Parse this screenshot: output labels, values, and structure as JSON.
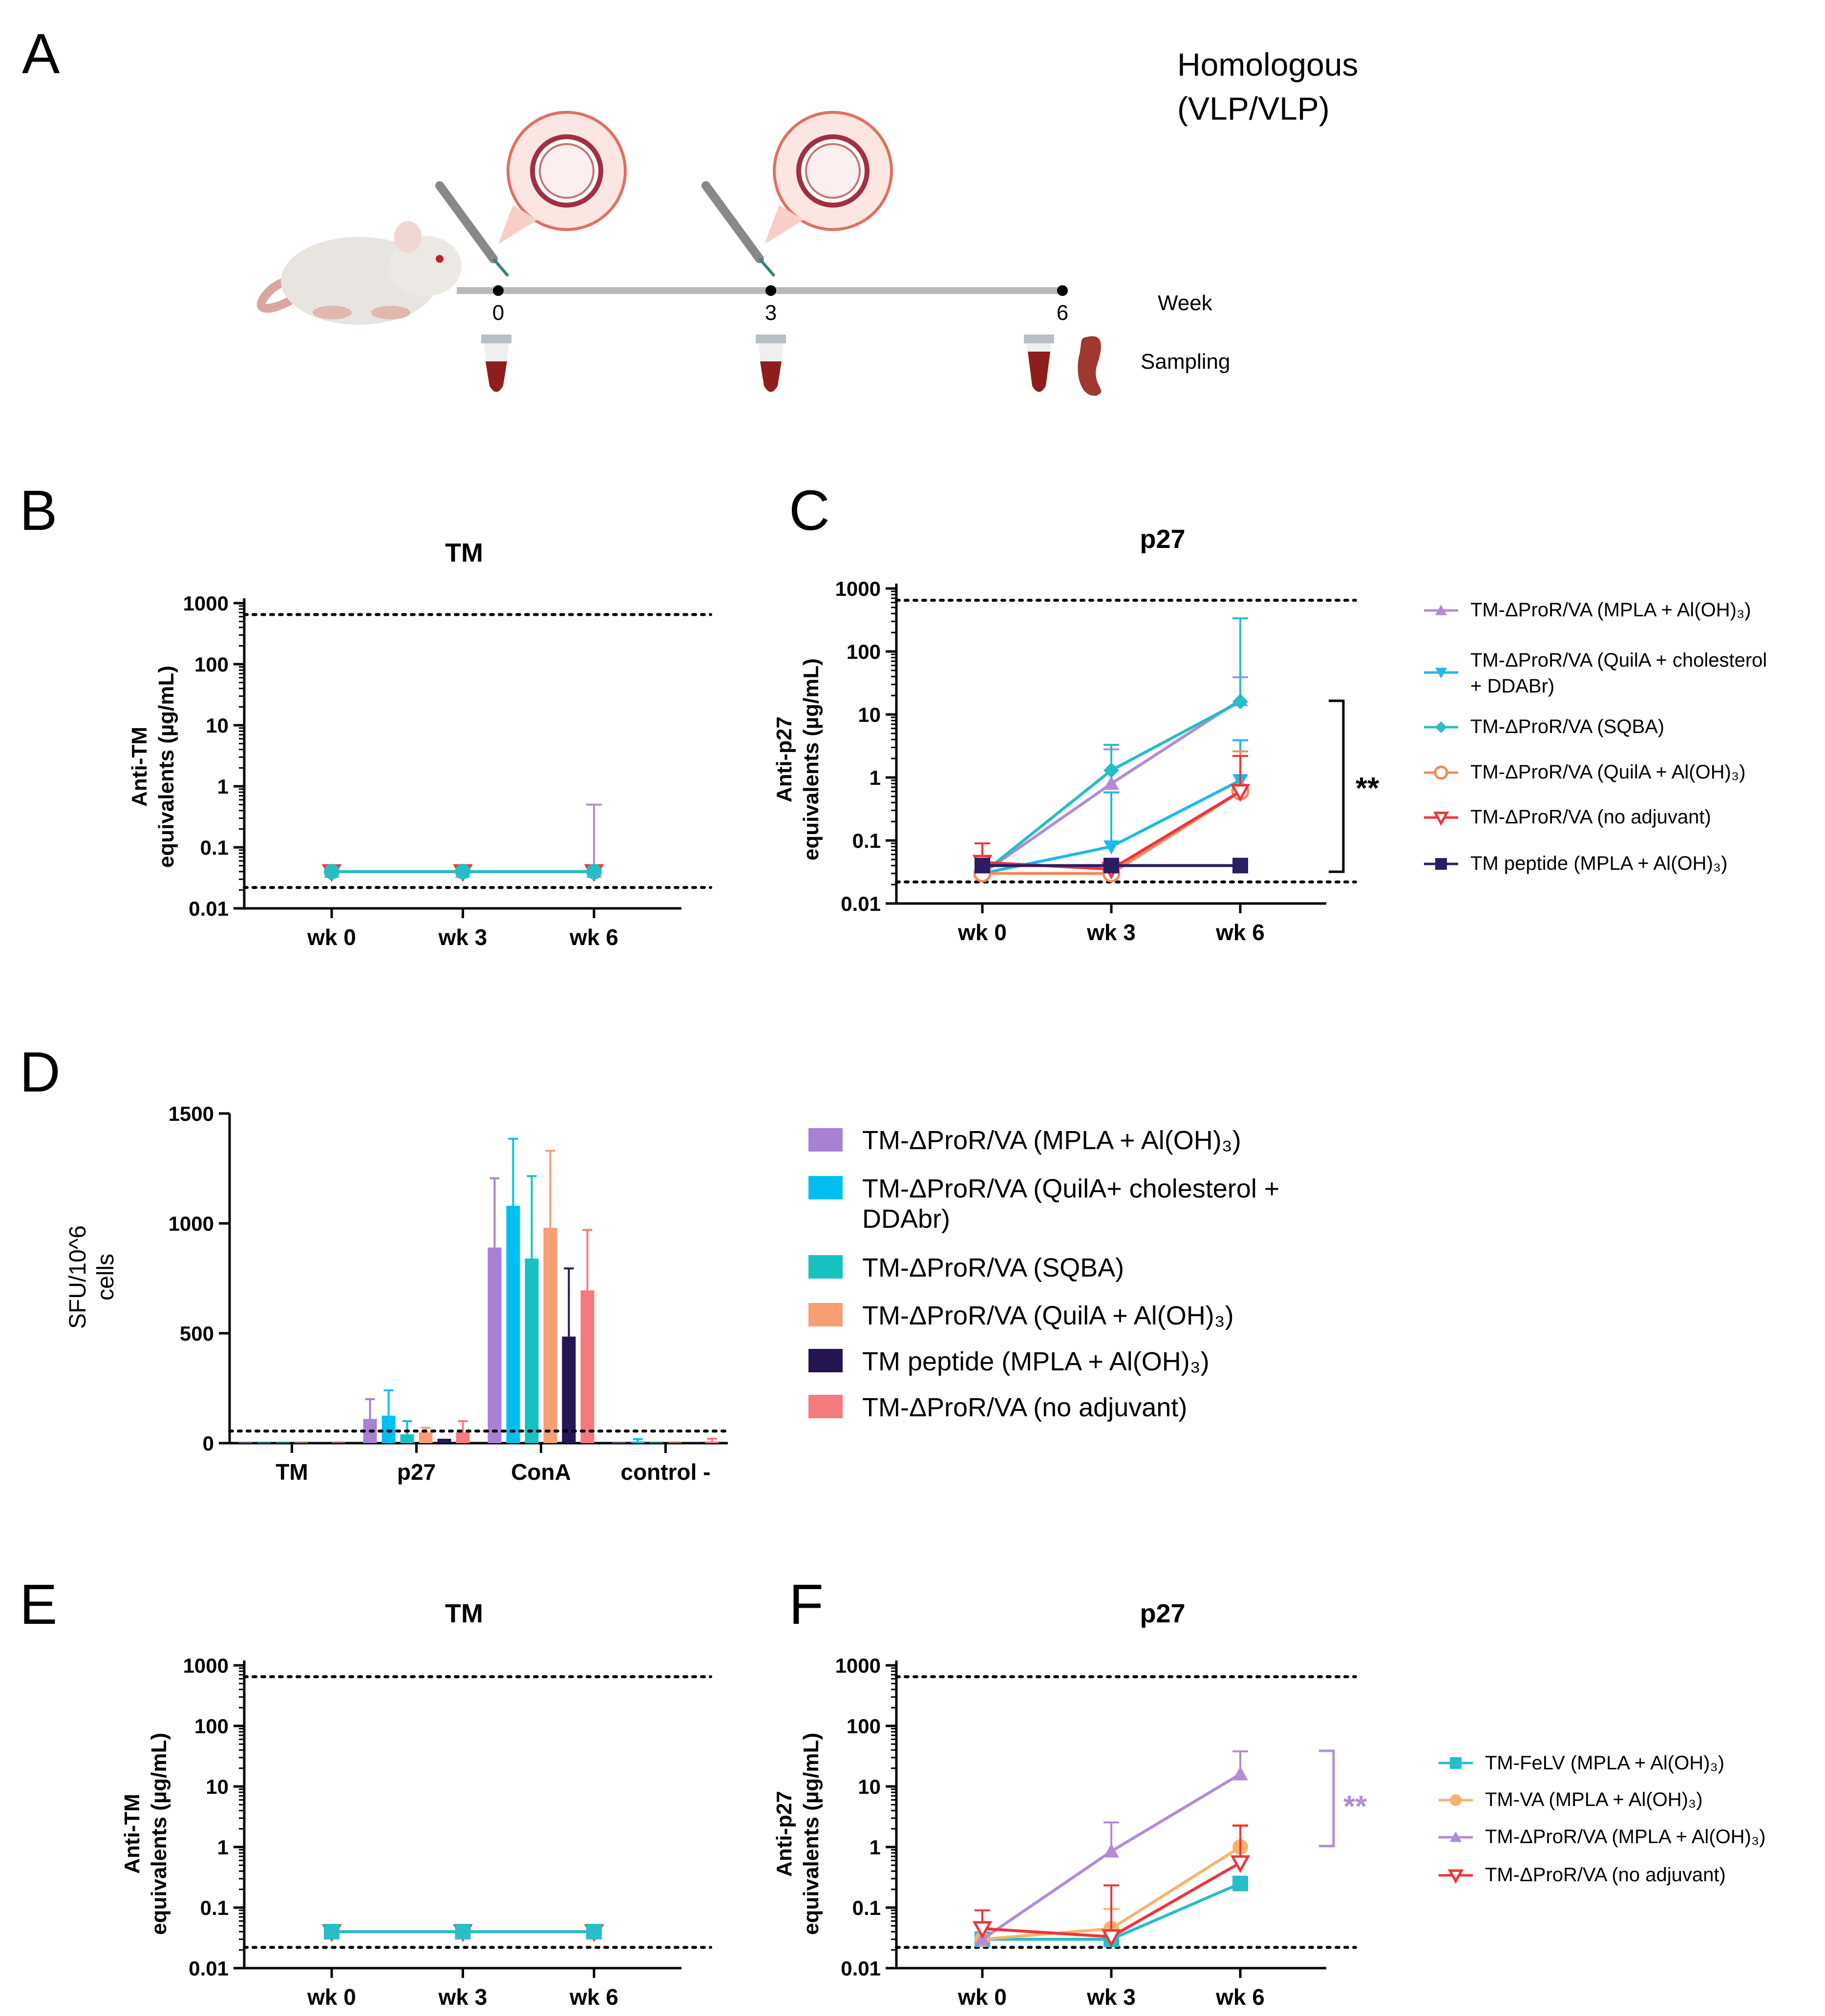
{
  "panel_labels": {
    "A": "A",
    "B": "B",
    "C": "C",
    "D": "D",
    "E": "E",
    "F": "F"
  },
  "panel_a": {
    "title_line1": "Homologous",
    "title_line2": "(VLP/VLP)",
    "weeks": [
      "0",
      "3",
      "6"
    ],
    "week_label": "Week",
    "sampling_label": "Sampling"
  },
  "colors": {
    "mpla": "#B38BD8",
    "quila_chol": "#1FB8E8",
    "sqba": "#25BEC4",
    "quila_aloh": "#F48A5A",
    "no_adj": "#F0343A",
    "tm_peptide": "#2B1D63",
    "felv": "#27BDC9",
    "va": "#F7B36E",
    "d_mpla": "#A880D4",
    "d_quila_chol": "#00BFF0",
    "d_sqba": "#16C2C0",
    "d_quila_aloh": "#F79E72",
    "d_peptide": "#261553",
    "d_no_adj": "#F57A7E"
  },
  "chart_data": [
    {
      "id": "B",
      "type": "line",
      "title": "TM",
      "ylabel_line1": "Anti-TM",
      "ylabel_line2": "equivalents (µg/mL)",
      "yscale": "log",
      "ylim": [
        0.01,
        1000
      ],
      "yticks": [
        "0.01",
        "0.1",
        "1",
        "10",
        "100",
        "1000"
      ],
      "categories": [
        "wk 0",
        "wk 3",
        "wk 6"
      ],
      "hlines": [
        0.022,
        650
      ],
      "series": [
        {
          "name": "TM-ΔProR/VA (MPLA + Al(OH)3)",
          "values": [
            0.04,
            0.04,
            0.04
          ],
          "err": [
            0,
            0,
            0.46
          ]
        },
        {
          "name": "TM-ΔProR/VA (no adjuvant)",
          "values": [
            0.04,
            0.04,
            0.04
          ],
          "err": [
            0,
            0,
            0
          ]
        },
        {
          "name": "TM-ΔProR/VA (SQBA)",
          "values": [
            0.04,
            0.04,
            0.04
          ],
          "err": [
            0,
            0,
            0
          ]
        }
      ]
    },
    {
      "id": "C",
      "type": "line",
      "title": "p27",
      "ylabel_line1": "Anti-p27",
      "ylabel_line2": "equivalents (µg/mL)",
      "yscale": "log",
      "ylim": [
        0.01,
        1000
      ],
      "yticks": [
        "0.01",
        "0.1",
        "1",
        "10",
        "100",
        "1000"
      ],
      "categories": [
        "wk 0",
        "wk 3",
        "wk 6"
      ],
      "hlines": [
        0.022,
        650
      ],
      "significance": "**",
      "legend": [
        "TM-ΔProR/VA  (MPLA + Al(OH)₃)",
        "TM-ΔProR/VA  (QuilA +  cholesterol",
        "+ DDABr)",
        "TM-ΔProR/VA  (SQBA)",
        "TM-ΔProR/VA  (QuilA + Al(OH)₃)",
        "TM-ΔProR/VA  (no adjuvant)",
        "TM peptide (MPLA + Al(OH)₃)"
      ],
      "series": [
        {
          "name": "TM-ΔProR/VA (MPLA + Al(OH)3)",
          "values": [
            0.03,
            0.8,
            17
          ],
          "err": [
            0,
            2,
            22
          ]
        },
        {
          "name": "TM-ΔProR/VA (QuilA + cholesterol + DDABr)",
          "values": [
            0.03,
            0.08,
            0.9
          ],
          "err": [
            0,
            0.5,
            3
          ]
        },
        {
          "name": "TM-ΔProR/VA (SQBA)",
          "values": [
            0.03,
            1.3,
            16
          ],
          "err": [
            0,
            2,
            320
          ]
        },
        {
          "name": "TM-ΔProR/VA (QuilA + Al(OH)3)",
          "values": [
            0.03,
            0.03,
            0.6
          ],
          "err": [
            0,
            0,
            2
          ]
        },
        {
          "name": "TM-ΔProR/VA (no adjuvant)",
          "values": [
            0.045,
            0.035,
            0.6
          ],
          "err": [
            0.045,
            0,
            1.6
          ]
        },
        {
          "name": "TM peptide (MPLA + Al(OH)3)",
          "values": [
            0.04,
            0.04,
            0.04
          ],
          "err": [
            0,
            0,
            0
          ]
        }
      ]
    },
    {
      "id": "D",
      "type": "bar",
      "ylabel_line1": "SFU/10^6",
      "ylabel_line2": "cells",
      "ylim": [
        0,
        1500
      ],
      "yticks": [
        "0",
        "500",
        "1000",
        "1500"
      ],
      "categories": [
        "TM",
        "p27",
        "ConA",
        "control -"
      ],
      "hline": 55,
      "legend": [
        "TM-ΔProR/VA (MPLA + Al(OH)₃)",
        "TM-ΔProR/VA (QuilA+ cholesterol +",
        "DDAbr)",
        "TM-ΔProR/VA (SQBA)",
        "TM-ΔProR/VA (QuilA + Al(OH)₃)",
        "TM peptide (MPLA + Al(OH)₃)",
        "TM-ΔProR/VA (no adjuvant)"
      ],
      "series": [
        {
          "name": "TM-ΔProR/VA (MPLA + Al(OH)3)",
          "values": [
            3,
            110,
            890,
            3
          ],
          "err": [
            0,
            90,
            315,
            0
          ]
        },
        {
          "name": "TM-ΔProR/VA (QuilA+ cholesterol + DDAbr)",
          "values": [
            3,
            125,
            1080,
            8
          ],
          "err": [
            0,
            115,
            305,
            10
          ]
        },
        {
          "name": "TM-ΔProR/VA (SQBA)",
          "values": [
            3,
            40,
            840,
            3
          ],
          "err": [
            0,
            60,
            375,
            0
          ]
        },
        {
          "name": "TM-ΔProR/VA (QuilA + Al(OH)3)",
          "values": [
            3,
            50,
            980,
            3
          ],
          "err": [
            0,
            20,
            350,
            0
          ]
        },
        {
          "name": "TM peptide (MPLA + Al(OH)3)",
          "values": [
            3,
            20,
            485,
            3
          ],
          "err": [
            0,
            0,
            310,
            0
          ]
        },
        {
          "name": "TM-ΔProR/VA (no adjuvant)",
          "values": [
            3,
            50,
            695,
            8
          ],
          "err": [
            0,
            50,
            275,
            12
          ]
        }
      ]
    },
    {
      "id": "E",
      "type": "line",
      "title": "TM",
      "ylabel_line1": "Anti-TM",
      "ylabel_line2": "equivalents (µg/mL)",
      "yscale": "log",
      "ylim": [
        0.01,
        1000
      ],
      "yticks": [
        "0.01",
        "0.1",
        "1",
        "10",
        "100",
        "1000"
      ],
      "categories": [
        "wk 0",
        "wk 3",
        "wk 6"
      ],
      "hlines": [
        0.022,
        650
      ],
      "series": [
        {
          "name": "TM-ΔProR/VA (no adjuvant)",
          "values": [
            0.04,
            0.04,
            0.04
          ],
          "err": [
            0,
            0,
            0
          ]
        },
        {
          "name": "TM-FeLV (MPLA + Al(OH)3)",
          "values": [
            0.04,
            0.04,
            0.04
          ],
          "err": [
            0,
            0,
            0
          ]
        }
      ]
    },
    {
      "id": "F",
      "type": "line",
      "title": "p27",
      "ylabel_line1": "Anti-p27",
      "ylabel_line2": "equivalents (µg/mL)",
      "yscale": "log",
      "ylim": [
        0.01,
        1000
      ],
      "yticks": [
        "0.01",
        "0.1",
        "1",
        "10",
        "100",
        "1000"
      ],
      "categories": [
        "wk 0",
        "wk 3",
        "wk 6"
      ],
      "hlines": [
        0.022,
        650
      ],
      "significance": "**",
      "legend": [
        "TM-FeLV (MPLA + Al(OH)₃)",
        "TM-VA (MPLA + Al(OH)₃)",
        "TM-ΔProR/VA (MPLA + Al(OH)₃)",
        "TM-ΔProR/VA (no adjuvant)"
      ],
      "series": [
        {
          "name": "TM-FeLV (MPLA + Al(OH)3)",
          "values": [
            0.03,
            0.03,
            0.25
          ],
          "err": [
            0,
            0,
            0
          ]
        },
        {
          "name": "TM-VA (MPLA + Al(OH)3)",
          "values": [
            0.03,
            0.045,
            1.0
          ],
          "err": [
            0,
            0.05,
            1.3
          ]
        },
        {
          "name": "TM-ΔProR/VA (MPLA + Al(OH)3)",
          "values": [
            0.03,
            0.85,
            16
          ],
          "err": [
            0,
            1.7,
            22
          ]
        },
        {
          "name": "TM-ΔProR/VA (no adjuvant)",
          "values": [
            0.045,
            0.033,
            0.55
          ],
          "err": [
            0.045,
            0.2,
            1.7
          ]
        }
      ]
    }
  ]
}
